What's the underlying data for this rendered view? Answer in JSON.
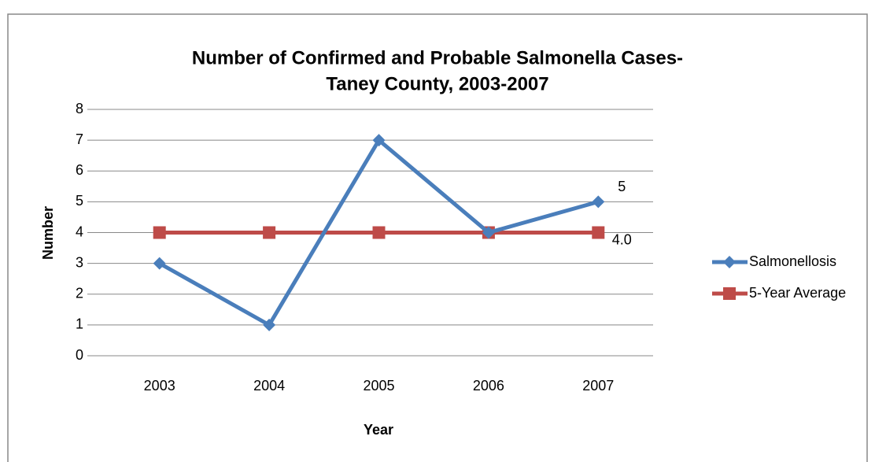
{
  "chart_data": {
    "type": "line",
    "title": [
      "Number of Confirmed and Probable Salmonella Cases-",
      "Taney County, 2003-2007"
    ],
    "x_label": "Year",
    "y_label": "Number",
    "categories": [
      "2003",
      "2004",
      "2005",
      "2006",
      "2007"
    ],
    "series": [
      {
        "name": "Salmonellosis",
        "color": "#4a7ebb",
        "marker": "diamond",
        "values": [
          3,
          1,
          7,
          4,
          5
        ],
        "value_labels": [
          null,
          null,
          null,
          null,
          "5"
        ]
      },
      {
        "name": "5-Year Average",
        "color": "#be4b48",
        "marker": "square",
        "values": [
          4,
          4,
          4,
          4,
          4
        ],
        "value_labels": [
          null,
          null,
          null,
          null,
          "4.0"
        ]
      }
    ],
    "ylim": [
      0,
      8
    ],
    "yticks": [
      0,
      1,
      2,
      3,
      4,
      5,
      6,
      7,
      8
    ],
    "grid": true,
    "legend": "right"
  }
}
